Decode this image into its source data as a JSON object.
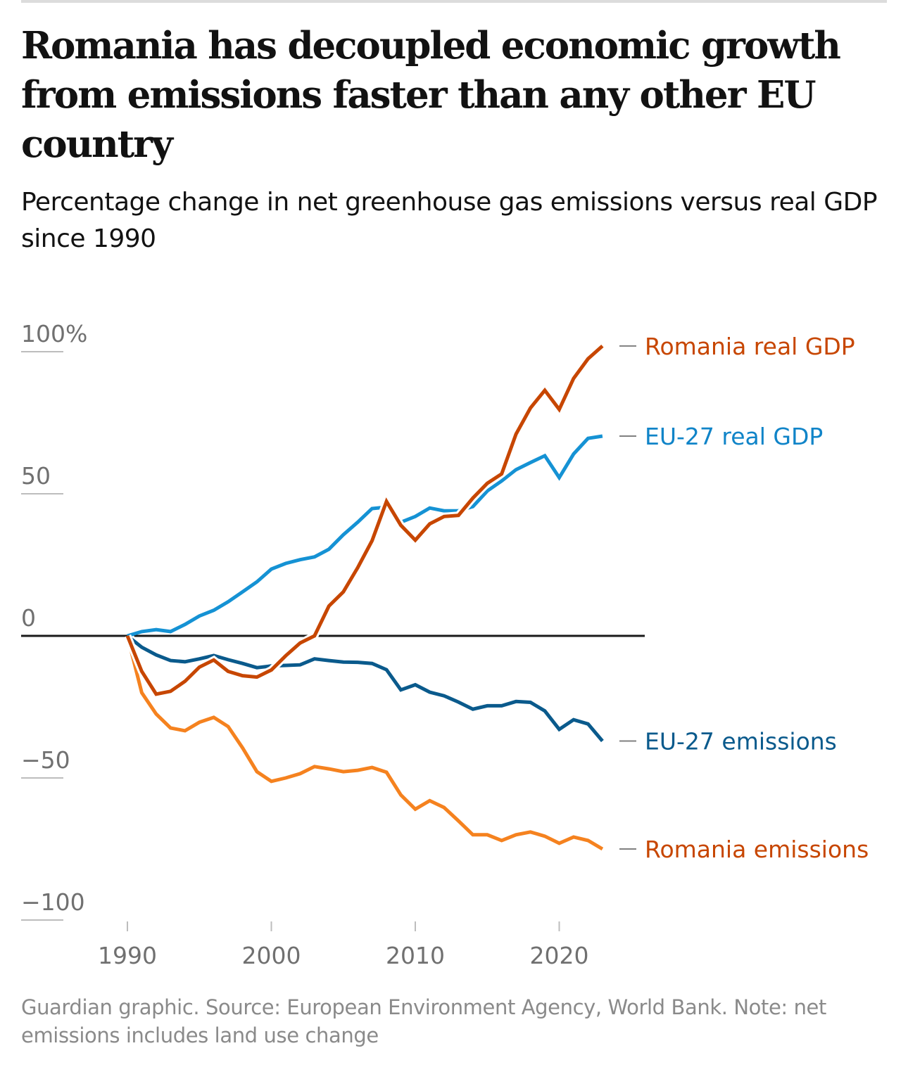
{
  "header": {
    "title": "Romania has decoupled economic growth from emissions faster than any other EU country",
    "subtitle": "Percentage change in net greenhouse gas emissions versus real GDP since 1990"
  },
  "footer": {
    "source": "Guardian graphic. Source: European Environment Agency, World Bank. Note: net emissions includes land use change"
  },
  "chart_data": {
    "type": "line",
    "title": "Romania has decoupled economic growth from emissions faster than any other EU country",
    "subtitle": "Percentage change in net greenhouse gas emissions versus real GDP since 1990",
    "xlabel": "",
    "ylabel": "",
    "xlim": [
      1983,
      2026
    ],
    "ylim": [
      -100,
      100
    ],
    "grid": false,
    "legend": "direct-labels-right",
    "x_ticks": [
      1990,
      2000,
      2010,
      2020
    ],
    "x_tick_labels": [
      "1990",
      "2000",
      "2010",
      "2020"
    ],
    "y_ticks": [
      100,
      50,
      0,
      -50,
      -100
    ],
    "y_tick_labels": [
      "100%",
      "50",
      "0",
      "−50",
      "−100"
    ],
    "x": [
      1990,
      1991,
      1992,
      1993,
      1994,
      1995,
      1996,
      1997,
      1998,
      1999,
      2000,
      2001,
      2002,
      2003,
      2004,
      2005,
      2006,
      2007,
      2008,
      2009,
      2010,
      2011,
      2012,
      2013,
      2014,
      2015,
      2016,
      2017,
      2018,
      2019,
      2020,
      2021,
      2022,
      2023
    ],
    "series": [
      {
        "name": "Romania real GDP",
        "color": "#c74600",
        "label_color": "#c74600",
        "values": [
          0,
          -12.5,
          -20.5,
          -19.5,
          -16,
          -11,
          -8.5,
          -12.5,
          -14,
          -14.5,
          -12,
          -7,
          -2.5,
          0,
          10.5,
          15.5,
          24,
          33.5,
          47.3,
          38.9,
          33.7,
          39.4,
          42,
          42.4,
          48.5,
          53.7,
          57,
          71,
          80.2,
          86.4,
          79.7,
          90.6,
          97.5,
          102
        ]
      },
      {
        "name": "EU-27 real GDP",
        "color": "#1592d4",
        "label_color": "#1084c8",
        "values": [
          0,
          1.5,
          2.2,
          1.5,
          4,
          7,
          9,
          12,
          15.5,
          19,
          23.5,
          25.5,
          26.8,
          27.8,
          30.5,
          35.6,
          40,
          44.8,
          45.3,
          40,
          42,
          45,
          44,
          44,
          45.5,
          51,
          54.5,
          58.5,
          61,
          63.4,
          55.7,
          64,
          69.5,
          70.3
        ]
      },
      {
        "name": "EU-27 emissions",
        "color": "#0a5a8c",
        "label_color": "#0a5a8c",
        "values": [
          0,
          -4,
          -6.7,
          -8.7,
          -9.1,
          -8.1,
          -6.9,
          -8.4,
          -9.7,
          -11.2,
          -10.6,
          -10.4,
          -10.2,
          -8.1,
          -8.7,
          -9.2,
          -9.3,
          -9.7,
          -11.9,
          -19,
          -17.2,
          -19.8,
          -21.1,
          -23.3,
          -25.8,
          -24.6,
          -24.6,
          -23.1,
          -23.4,
          -26.4,
          -32.9,
          -29.5,
          -31,
          -37
        ]
      },
      {
        "name": "Romania emissions",
        "color": "#f5821f",
        "label_color": "#c74600",
        "values": [
          0,
          -20,
          -27.5,
          -32.4,
          -33.4,
          -30.4,
          -28.7,
          -31.9,
          -39.4,
          -47.8,
          -51.2,
          -50,
          -48.5,
          -46,
          -46.8,
          -47.8,
          -47.3,
          -46.3,
          -48,
          -56,
          -61,
          -58,
          -60.4,
          -65.1,
          -70,
          -70,
          -72,
          -70,
          -69,
          -70.5,
          -73,
          -70.8,
          -72,
          -75
        ]
      }
    ],
    "zero_line": 0
  }
}
